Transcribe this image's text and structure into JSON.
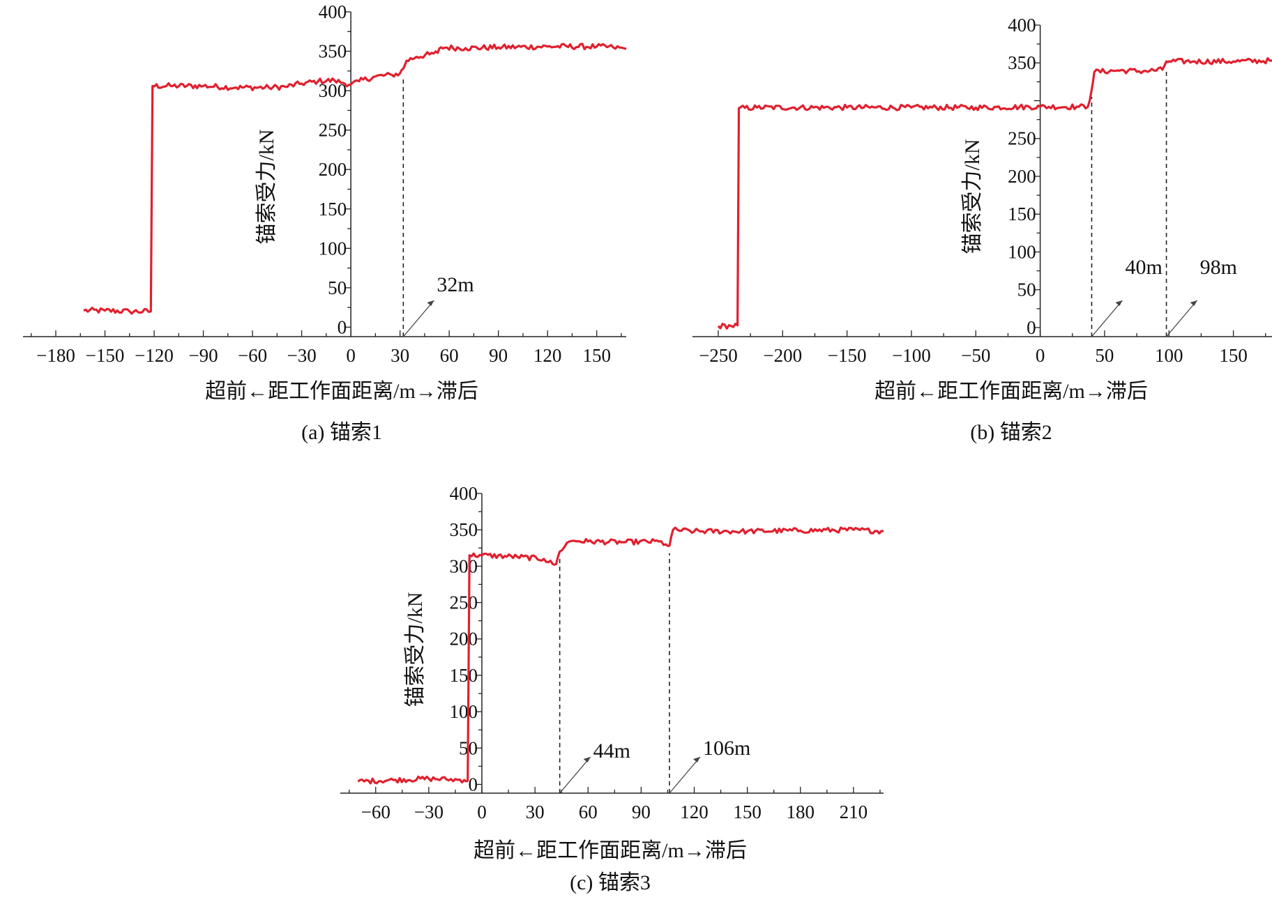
{
  "figure": {
    "line_color": "#e0202e",
    "panels": [
      {
        "caption": "(a) 锚索1",
        "xlabel": "超前←距工作面距离/m→滞后",
        "ylabel": "锚索受力/kN",
        "chart_data": {
          "type": "line",
          "title": "",
          "xlabel": "超前←距工作面距离/m→滞后",
          "ylabel": "锚索受力/kN",
          "xlim": [
            -200,
            168
          ],
          "ylim": [
            -12,
            400
          ],
          "xticks": [
            -180,
            -150,
            -120,
            -90,
            -60,
            -30,
            0,
            30,
            60,
            90,
            120,
            150
          ],
          "xtick_labels": [
            "−180",
            "−150",
            "−120",
            "−90",
            "−60",
            "−30",
            "0",
            "30",
            "60",
            "90",
            "120",
            "150"
          ],
          "yticks": [
            0,
            50,
            100,
            150,
            200,
            250,
            300,
            350,
            400
          ],
          "ytick_labels": [
            "0",
            "50",
            "100",
            "150",
            "200",
            "250",
            "300",
            "350",
            "400"
          ],
          "grid": false,
          "series": [
            {
              "x": [
                -163,
                -150,
                -135,
                -122,
                -121,
                -110,
                -90,
                -70,
                -50,
                -40,
                -30,
                -20,
                -10,
                -5,
                0,
                5,
                15,
                25,
                30,
                32,
                34,
                40,
                48,
                53,
                55,
                70,
                90,
                120,
                150,
                160,
                168
              ],
              "y": [
                21,
                21,
                20,
                20,
                306,
                306,
                306,
                304,
                304,
                305,
                309,
                312,
                313,
                310,
                308,
                312,
                318,
                320,
                322,
                328,
                338,
                343,
                346,
                348,
                355,
                354,
                355,
                356,
                356,
                355,
                353
              ]
            }
          ],
          "annotations": [
            {
              "x": 32,
              "label": "32m"
            }
          ]
        }
      },
      {
        "caption": "(b) 锚索2",
        "xlabel": "超前←距工作面距离/m→滞后",
        "ylabel": "锚索受力/kN",
        "chart_data": {
          "type": "line",
          "title": "",
          "xlabel": "超前←距工作面距离/m→滞后",
          "ylabel": "锚索受力/kN",
          "xlim": [
            -270,
            180
          ],
          "ylim": [
            -12,
            400
          ],
          "xticks": [
            -250,
            -200,
            -150,
            -100,
            -50,
            0,
            50,
            100,
            150
          ],
          "xtick_labels": [
            "−250",
            "−200",
            "−150",
            "−100",
            "−50",
            "0",
            "50",
            "100",
            "150"
          ],
          "yticks": [
            0,
            50,
            100,
            150,
            200,
            250,
            350,
            400
          ],
          "ytick_labels": [
            "0",
            "50",
            "100",
            "150",
            "200",
            "250",
            "350",
            "400"
          ],
          "grid": false,
          "series": [
            {
              "x": [
                -250,
                -240,
                -235,
                -234,
                -220,
                -150,
                -100,
                -50,
                0,
                30,
                37,
                40,
                42,
                60,
                80,
                95,
                98,
                100,
                120,
                150,
                180
              ],
              "y": [
                2,
                2,
                3,
                290,
                291,
                291,
                291,
                291,
                292,
                292,
                292,
                315,
                338,
                340,
                339,
                341,
                352,
                352,
                352,
                352,
                353
              ]
            }
          ],
          "annotations": [
            {
              "x": 40,
              "label": "40m"
            },
            {
              "x": 98,
              "label": "98m"
            }
          ]
        }
      },
      {
        "caption": "(c) 锚索3",
        "xlabel": "超前←距工作面距离/m→滞后",
        "ylabel": "锚索受力/kN",
        "chart_data": {
          "type": "line",
          "title": "",
          "xlabel": "超前←距工作面距离/m→滞后",
          "ylabel": "锚索受力/kN",
          "xlim": [
            -80,
            227
          ],
          "ylim": [
            -12,
            400
          ],
          "xticks": [
            -60,
            -30,
            0,
            30,
            60,
            90,
            120,
            150,
            180,
            210
          ],
          "xtick_labels": [
            "−60",
            "−30",
            "0",
            "30",
            "60",
            "90",
            "120",
            "150",
            "180",
            "210"
          ],
          "yticks": [
            0,
            50,
            100,
            150,
            200,
            250,
            300,
            350,
            400
          ],
          "ytick_labels": [
            "0",
            "50",
            "100",
            "150",
            "200",
            "250",
            "300",
            "350",
            "400"
          ],
          "grid": false,
          "series": [
            {
              "x": [
                -70,
                -50,
                -30,
                -20,
                -10,
                -8,
                -7,
                0,
                20,
                35,
                40,
                42,
                44,
                48,
                52,
                60,
                80,
                100,
                104,
                106,
                108,
                120,
                150,
                180,
                210,
                227
              ],
              "y": [
                4,
                6,
                8,
                7,
                6,
                5,
                315,
                315,
                313,
                310,
                303,
                303,
                320,
                332,
                335,
                334,
                333,
                334,
                330,
                328,
                350,
                348,
                348,
                349,
                350,
                348
              ]
            }
          ],
          "annotations": [
            {
              "x": 44,
              "label": "44m"
            },
            {
              "x": 106,
              "label": "106m"
            }
          ]
        }
      }
    ]
  }
}
